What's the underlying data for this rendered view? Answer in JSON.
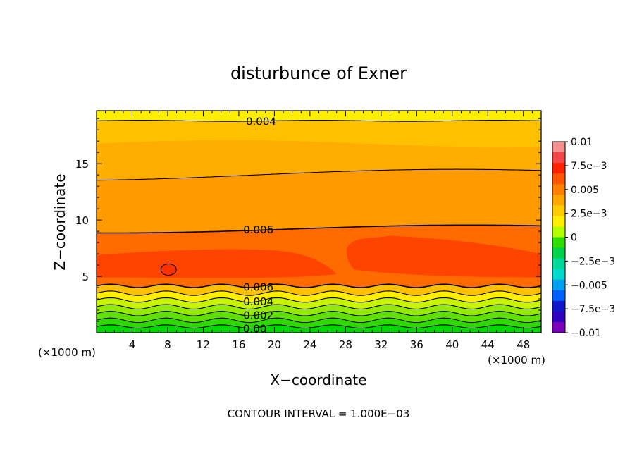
{
  "chart_data": {
    "type": "heatmap",
    "title": "disturbunce of Exner",
    "xlabel": "X−coordinate",
    "ylabel": "Z−coordinate",
    "x_unit_left": "(×1000 m)",
    "x_unit_right": "(×1000 m)",
    "footer": "CONTOUR INTERVAL = 1.000E−03",
    "xlim": [
      0,
      50
    ],
    "ylim": [
      0,
      19.7
    ],
    "x_tick_labels": [
      "4",
      "8",
      "12",
      "16",
      "20",
      "24",
      "28",
      "32",
      "36",
      "40",
      "44",
      "48"
    ],
    "y_tick_labels": [
      "5",
      "10",
      "15"
    ],
    "contour_labels": [
      {
        "text": "0.004",
        "x": 18.5,
        "y": 18.8
      },
      {
        "text": "0.006",
        "x": 18.2,
        "y": 9.2
      },
      {
        "text": "0.006",
        "x": 18.2,
        "y": 4.1
      },
      {
        "text": "0.004",
        "x": 18.2,
        "y": 2.8
      },
      {
        "text": "0.002",
        "x": 18.2,
        "y": 1.6
      },
      {
        "text": "0.00",
        "x": 17.8,
        "y": 0.4
      }
    ],
    "colorbar": {
      "labels": [
        "0.01",
        "7.5e−3",
        "0.005",
        "2.5e−3",
        "0",
        "−2.5e−3",
        "−0.005",
        "−7.5e−3",
        "−0.01"
      ],
      "colors_top_to_bottom": [
        "#f58f8f",
        "#f44747",
        "#ff2400",
        "#ff5500",
        "#ff7f00",
        "#ffa500",
        "#ffcc00",
        "#ffee00",
        "#b4ff00",
        "#2fdc00",
        "#00d34b",
        "#00d899",
        "#00d8cc",
        "#009ff0",
        "#0060ff",
        "#1016c8",
        "#3000bf",
        "#7a00b8"
      ]
    },
    "bands": [
      {
        "name": "0-0.001",
        "color": "#00d600"
      },
      {
        "name": "0.001-0.002",
        "color": "#4ee000"
      },
      {
        "name": "0.002-0.003",
        "color": "#a4ee00"
      },
      {
        "name": "0.003-0.004",
        "color": "#ffee00"
      },
      {
        "name": "0.004-0.005",
        "color": "#ffc000"
      },
      {
        "name": "0.005-0.006",
        "color": "#ff9a00"
      },
      {
        "name": "0.006-0.007",
        "color": "#ff6b00"
      },
      {
        "name": "0.007-0.008",
        "color": "#ff4400"
      }
    ]
  }
}
